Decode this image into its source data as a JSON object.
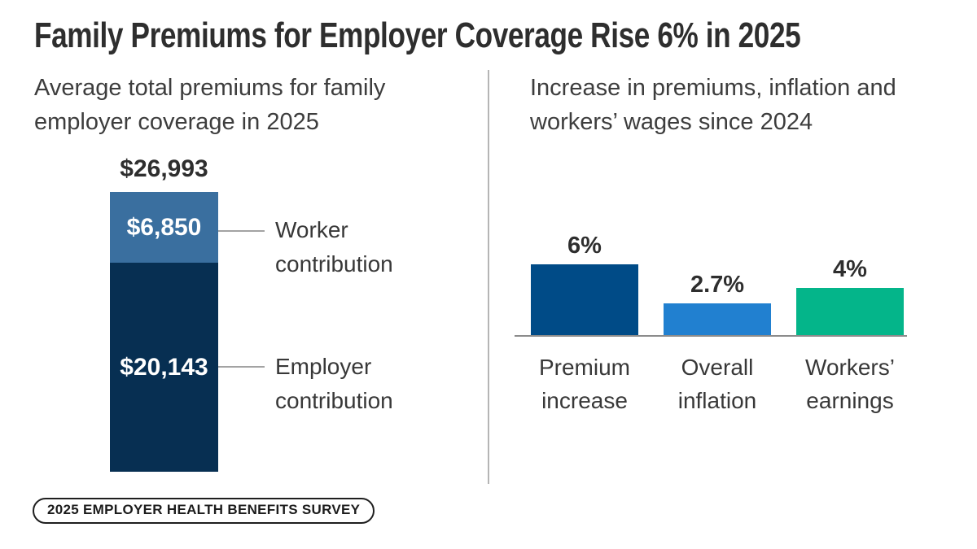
{
  "page": {
    "title": "Family Premiums for Employer Coverage Rise 6% in 2025",
    "badge_label": "2025 EMPLOYER HEALTH BENEFITS SURVEY"
  },
  "colors": {
    "worker_segment": "#3a6f9f",
    "employer_segment": "#072f52",
    "premium_bar": "#004b87",
    "inflation_bar": "#2180d0",
    "earnings_bar": "#04b58a",
    "divider": "#b5b5b5",
    "baseline": "#8c8c8c",
    "text_dark": "#2e2e2e"
  },
  "chart_data": [
    {
      "type": "bar",
      "subtype": "single-stacked-column",
      "title": "Average total premiums for family employer coverage in 2025",
      "total": 26993,
      "total_label": "$26,993",
      "segments": [
        {
          "name": "Worker contribution",
          "value": 6850,
          "value_label": "$6,850",
          "color": "#3a6f9f"
        },
        {
          "name": "Employer contribution",
          "value": 20143,
          "value_label": "$20,143",
          "color": "#072f52"
        }
      ],
      "legend_position": "right-callouts",
      "grid": false
    },
    {
      "type": "bar",
      "title": "Increase in premiums, inflation and workers’ wages since 2024",
      "categories": [
        "Premium increase",
        "Overall inflation",
        "Workers’ earnings"
      ],
      "values": [
        6,
        2.7,
        4
      ],
      "value_labels": [
        "6%",
        "2.7%",
        "4%"
      ],
      "bar_colors": [
        "#004b87",
        "#2180d0",
        "#04b58a"
      ],
      "ylim": [
        0,
        6.6
      ],
      "ylabel": "",
      "xlabel": "",
      "grid": false,
      "legend_position": "none"
    }
  ]
}
